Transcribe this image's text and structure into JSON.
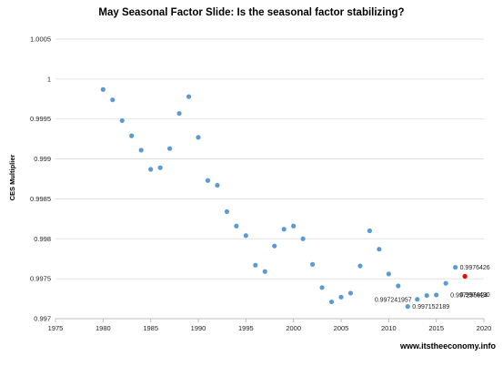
{
  "chart_data": {
    "type": "scatter",
    "title": "May  Seasonal Factor Slide: Is the seasonal factor stabilizing?",
    "xlabel": "",
    "ylabel": "CES Multiplier",
    "xlim": [
      1975,
      2020
    ],
    "ylim": [
      0.997,
      1.0005
    ],
    "xticks": [
      1975,
      1980,
      1985,
      1990,
      1995,
      2000,
      2005,
      2010,
      2015,
      2020
    ],
    "xtick_labels": [
      "1975",
      "1980",
      "1985",
      "1990",
      "1995",
      "2000",
      "2005",
      "2010",
      "2015",
      "2020"
    ],
    "yticks": [
      0.997,
      0.9975,
      0.998,
      0.9985,
      0.999,
      0.9995,
      1.0,
      1.0005
    ],
    "ytick_labels": [
      "0.997",
      "0.9975",
      "0.998",
      "0.9985",
      "0.999",
      "0.9995",
      "1",
      "1.0005"
    ],
    "grid": "horizontal",
    "legend": "none",
    "series": [
      {
        "color": "#5b9bd5",
        "x": [
          1980,
          1981,
          1982,
          1983,
          1984,
          1985,
          1986,
          1987,
          1988,
          1989,
          1990,
          1991,
          1992,
          1993,
          1994,
          1995,
          1996,
          1997,
          1998,
          1999,
          2000,
          2001,
          2002,
          2003,
          2004,
          2005,
          2006,
          2007,
          2008,
          2009,
          2010,
          2011,
          2012,
          2013,
          2014,
          2015,
          2016,
          2017
        ],
        "y": [
          0.99987,
          0.99974,
          0.99948,
          0.99929,
          0.99911,
          0.99887,
          0.99889,
          0.99913,
          0.99957,
          0.99978,
          0.99927,
          0.99873,
          0.99867,
          0.99834,
          0.99816,
          0.99804,
          0.99767,
          0.99759,
          0.99791,
          0.99812,
          0.99816,
          0.998,
          0.99768,
          0.99739,
          0.99721,
          0.99727,
          0.99732,
          0.99766,
          0.9981,
          0.99787,
          0.99756,
          0.99741,
          0.997152189,
          0.997241957,
          0.99729,
          0.997296824,
          0.997443,
          0.9976426
        ]
      },
      {
        "color": "#ff0000",
        "x": [
          2018
        ],
        "y": [
          0.99753
        ]
      }
    ],
    "annotations": [
      {
        "text": "0.9976426",
        "x": 2017,
        "y": 0.9976426,
        "anchor": "right"
      },
      {
        "text": "0.9974430",
        "x": 2017,
        "y": 0.9973,
        "anchor": "right"
      },
      {
        "text": "0.997241957",
        "x": 2013,
        "y": 0.997241957,
        "anchor": "left"
      },
      {
        "text": "0.997296824",
        "x": 2016,
        "y": 0.997296824,
        "anchor": "right"
      },
      {
        "text": "0.997152189",
        "x": 2012,
        "y": 0.997152189,
        "anchor": "right"
      }
    ],
    "watermark": "www.itstheeconomy.info"
  }
}
